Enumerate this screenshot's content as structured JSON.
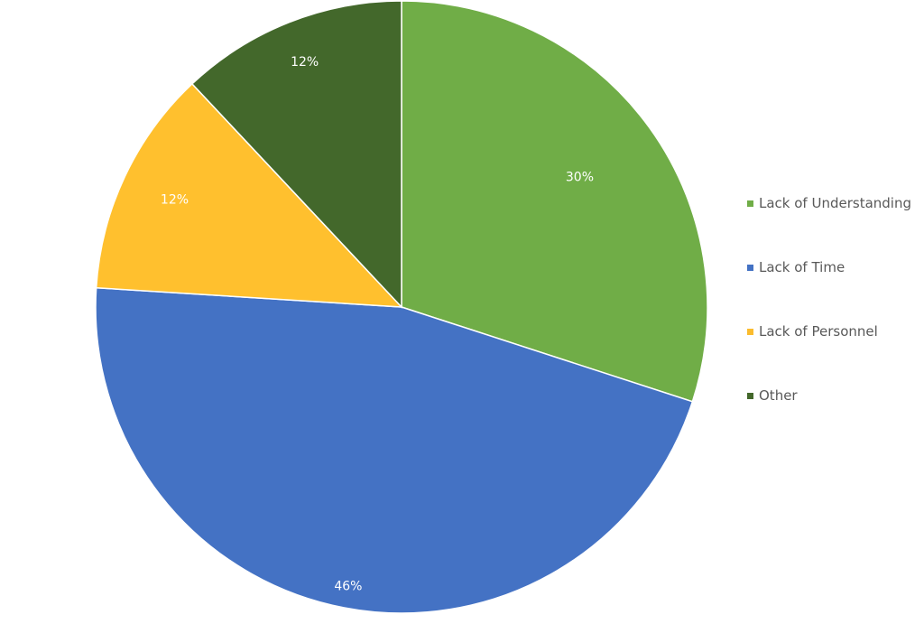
{
  "chart_data": {
    "type": "pie",
    "title": "",
    "categories": [
      "Lack of Understanding",
      "Lack of Time",
      "Lack of Personnel",
      "Other"
    ],
    "values": [
      30,
      46,
      12,
      12
    ],
    "labels": [
      "30%",
      "46%",
      "12%",
      "12%"
    ],
    "colors": [
      "#70AD47",
      "#4472C4",
      "#FFC02E",
      "#43682B"
    ],
    "legend_position": "right",
    "start_angle_deg": 0,
    "direction": "clockwise"
  },
  "legend": {
    "items": [
      {
        "label": "Lack of Understanding",
        "color": "#70AD47"
      },
      {
        "label": "Lack of Time",
        "color": "#4472C4"
      },
      {
        "label": "Lack of Personnel",
        "color": "#FBBC2E"
      },
      {
        "label": "Other",
        "color": "#43682B"
      }
    ]
  }
}
